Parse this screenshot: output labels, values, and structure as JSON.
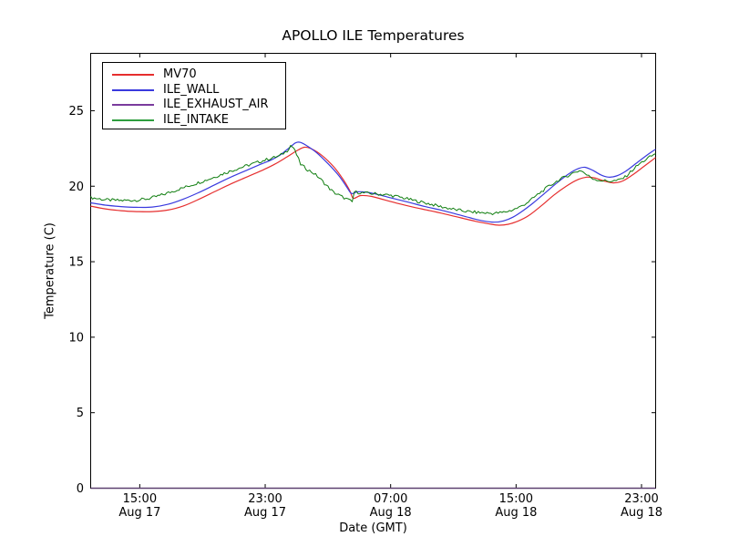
{
  "title": "APOLLO ILE Temperatures",
  "xlabel": "Date (GMT)",
  "ylabel": "Temperature (C)",
  "legend": {
    "entries": [
      {
        "label": "MV70",
        "color": "#e62e2e"
      },
      {
        "label": "ILE_WALL",
        "color": "#3a3ade"
      },
      {
        "label": "ILE_EXHAUST_AIR",
        "color": "#7a3b9d"
      },
      {
        "label": "ILE_INTAKE",
        "color": "#2e9e3e"
      }
    ],
    "position": "upper left"
  },
  "chart_data": {
    "type": "line",
    "title": "APOLLO ILE Temperatures",
    "xlabel": "Date (GMT)",
    "ylabel": "Temperature (C)",
    "x_unit": "hours since Aug 17 12:00 GMT",
    "xlim_hours": [
      -0.13,
      35.9
    ],
    "ylim": [
      0,
      28.8
    ],
    "grid": false,
    "yticks": [
      0,
      5,
      10,
      15,
      20,
      25
    ],
    "xticks": [
      {
        "hours": 3,
        "line1": "15:00",
        "line2": "Aug 17"
      },
      {
        "hours": 11,
        "line1": "23:00",
        "line2": "Aug 17"
      },
      {
        "hours": 19,
        "line1": "07:00",
        "line2": "Aug 18"
      },
      {
        "hours": 27,
        "line1": "15:00",
        "line2": "Aug 18"
      },
      {
        "hours": 35,
        "line1": "23:00",
        "line2": "Aug 18"
      }
    ],
    "series": [
      {
        "name": "MV70",
        "color": "#e62e2e",
        "width": 1.2,
        "noise_amplitude": 0,
        "points": [
          [
            -0.13,
            18.68
          ],
          [
            0.8,
            18.5
          ],
          [
            1.8,
            18.38
          ],
          [
            2.8,
            18.32
          ],
          [
            3.8,
            18.32
          ],
          [
            4.8,
            18.42
          ],
          [
            5.8,
            18.7
          ],
          [
            6.8,
            19.15
          ],
          [
            7.8,
            19.65
          ],
          [
            8.8,
            20.15
          ],
          [
            9.8,
            20.6
          ],
          [
            10.8,
            21.05
          ],
          [
            11.6,
            21.45
          ],
          [
            12.4,
            21.95
          ],
          [
            13.1,
            22.4
          ],
          [
            13.5,
            22.58
          ],
          [
            13.9,
            22.5
          ],
          [
            14.6,
            22.05
          ],
          [
            15.4,
            21.25
          ],
          [
            16.0,
            20.4
          ],
          [
            16.4,
            19.7
          ],
          [
            16.62,
            19.2
          ],
          [
            17.1,
            19.38
          ],
          [
            17.8,
            19.32
          ],
          [
            18.6,
            19.1
          ],
          [
            19.5,
            18.85
          ],
          [
            20.5,
            18.6
          ],
          [
            21.5,
            18.38
          ],
          [
            22.5,
            18.15
          ],
          [
            23.5,
            17.9
          ],
          [
            24.4,
            17.68
          ],
          [
            25.2,
            17.52
          ],
          [
            25.9,
            17.42
          ],
          [
            26.5,
            17.48
          ],
          [
            27.1,
            17.68
          ],
          [
            27.8,
            18.05
          ],
          [
            28.6,
            18.7
          ],
          [
            29.4,
            19.4
          ],
          [
            30.2,
            20.0
          ],
          [
            30.9,
            20.42
          ],
          [
            31.5,
            20.6
          ],
          [
            32.0,
            20.55
          ],
          [
            32.6,
            20.35
          ],
          [
            33.2,
            20.22
          ],
          [
            33.8,
            20.35
          ],
          [
            34.5,
            20.8
          ],
          [
            35.2,
            21.35
          ],
          [
            35.9,
            21.9
          ]
        ]
      },
      {
        "name": "ILE_WALL",
        "color": "#3a3ade",
        "width": 1.2,
        "noise_amplitude": 0,
        "points": [
          [
            -0.13,
            18.9
          ],
          [
            0.8,
            18.75
          ],
          [
            1.8,
            18.65
          ],
          [
            2.8,
            18.6
          ],
          [
            3.8,
            18.62
          ],
          [
            4.8,
            18.8
          ],
          [
            5.8,
            19.15
          ],
          [
            6.8,
            19.6
          ],
          [
            7.8,
            20.1
          ],
          [
            8.8,
            20.6
          ],
          [
            9.8,
            21.05
          ],
          [
            10.7,
            21.45
          ],
          [
            11.4,
            21.75
          ],
          [
            12.0,
            22.1
          ],
          [
            12.6,
            22.6
          ],
          [
            12.95,
            22.88
          ],
          [
            13.25,
            22.9
          ],
          [
            13.7,
            22.65
          ],
          [
            14.3,
            22.2
          ],
          [
            15.0,
            21.5
          ],
          [
            15.7,
            20.7
          ],
          [
            16.2,
            19.95
          ],
          [
            16.5,
            19.52
          ],
          [
            16.9,
            19.63
          ],
          [
            17.5,
            19.6
          ],
          [
            18.3,
            19.42
          ],
          [
            19.2,
            19.18
          ],
          [
            20.2,
            18.92
          ],
          [
            21.2,
            18.65
          ],
          [
            22.2,
            18.42
          ],
          [
            23.2,
            18.15
          ],
          [
            24.1,
            17.9
          ],
          [
            24.9,
            17.7
          ],
          [
            25.6,
            17.62
          ],
          [
            26.2,
            17.7
          ],
          [
            26.8,
            17.95
          ],
          [
            27.4,
            18.35
          ],
          [
            28.1,
            18.9
          ],
          [
            28.9,
            19.6
          ],
          [
            29.7,
            20.3
          ],
          [
            30.4,
            20.85
          ],
          [
            31.0,
            21.18
          ],
          [
            31.4,
            21.25
          ],
          [
            31.9,
            21.05
          ],
          [
            32.4,
            20.75
          ],
          [
            32.9,
            20.6
          ],
          [
            33.4,
            20.68
          ],
          [
            34.0,
            21.0
          ],
          [
            34.7,
            21.55
          ],
          [
            35.4,
            22.1
          ],
          [
            35.9,
            22.45
          ]
        ]
      },
      {
        "name": "ILE_EXHAUST_AIR",
        "color": "#5d4070",
        "width": 1.6,
        "noise_amplitude": 0,
        "points": [
          [
            -0.13,
            0
          ],
          [
            35.9,
            0
          ]
        ]
      },
      {
        "name": "ILE_INTAKE",
        "color": "#0e7d0e",
        "width": 1.0,
        "noise_amplitude": 0.1,
        "points": [
          [
            -0.13,
            19.25
          ],
          [
            0.8,
            19.1
          ],
          [
            1.8,
            19.05
          ],
          [
            2.8,
            19.08
          ],
          [
            3.6,
            19.18
          ],
          [
            4.5,
            19.45
          ],
          [
            5.5,
            19.8
          ],
          [
            6.5,
            20.15
          ],
          [
            7.5,
            20.5
          ],
          [
            8.5,
            20.9
          ],
          [
            9.5,
            21.25
          ],
          [
            10.4,
            21.55
          ],
          [
            11.2,
            21.8
          ],
          [
            11.9,
            22.0
          ],
          [
            12.4,
            22.35
          ],
          [
            12.62,
            22.7
          ],
          [
            12.8,
            22.55
          ],
          [
            13.0,
            22.1
          ],
          [
            13.26,
            21.45
          ],
          [
            13.7,
            21.1
          ],
          [
            14.1,
            20.85
          ],
          [
            14.45,
            20.55
          ],
          [
            15.0,
            19.95
          ],
          [
            15.35,
            19.6
          ],
          [
            15.9,
            19.3
          ],
          [
            16.3,
            19.1
          ],
          [
            16.55,
            18.95
          ],
          [
            16.68,
            19.62
          ],
          [
            17.3,
            19.55
          ],
          [
            18.0,
            19.5
          ],
          [
            18.8,
            19.42
          ],
          [
            19.6,
            19.28
          ],
          [
            20.5,
            19.05
          ],
          [
            21.4,
            18.85
          ],
          [
            22.3,
            18.62
          ],
          [
            23.1,
            18.45
          ],
          [
            23.9,
            18.32
          ],
          [
            24.7,
            18.25
          ],
          [
            25.5,
            18.2
          ],
          [
            26.1,
            18.25
          ],
          [
            26.7,
            18.4
          ],
          [
            27.3,
            18.65
          ],
          [
            27.9,
            19.05
          ],
          [
            28.5,
            19.55
          ],
          [
            29.1,
            20.0
          ],
          [
            29.7,
            20.4
          ],
          [
            30.3,
            20.7
          ],
          [
            30.8,
            20.95
          ],
          [
            31.15,
            21.05
          ],
          [
            31.5,
            20.75
          ],
          [
            31.9,
            20.5
          ],
          [
            32.3,
            20.4
          ],
          [
            32.9,
            20.33
          ],
          [
            33.5,
            20.38
          ],
          [
            33.95,
            20.6
          ],
          [
            34.4,
            21.05
          ],
          [
            34.9,
            21.5
          ],
          [
            35.4,
            21.85
          ],
          [
            35.9,
            22.15
          ]
        ]
      }
    ]
  }
}
